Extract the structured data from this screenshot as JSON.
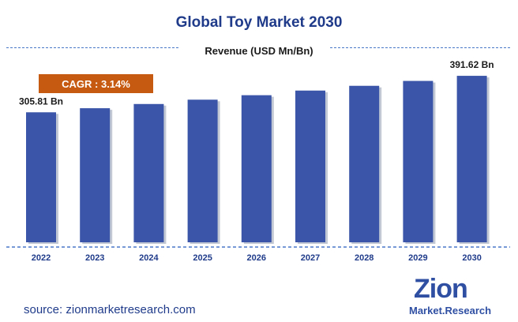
{
  "header": {
    "title": "Global Toy Market 2030",
    "subtitle": "Revenue (USD Mn/Bn)"
  },
  "cagr_label": "CAGR : 3.14%",
  "footer": {
    "source_label": "source: zionmarketresearch.com"
  },
  "logo": {
    "main": "Zion",
    "sub": "Market.Research"
  },
  "colors": {
    "bar": "#3b56a8",
    "bar_shadow": "#9aa3b8",
    "title": "#1f3b8a",
    "cagr_box": "#c65a11",
    "dash": "#4a78c8"
  },
  "chart_data": {
    "type": "bar",
    "title": "Global Toy Market 2030",
    "subtitle": "Revenue (USD Mn/Bn)",
    "categories": [
      "2022",
      "2023",
      "2024",
      "2025",
      "2026",
      "2027",
      "2028",
      "2029",
      "2030"
    ],
    "values": [
      305.81,
      315.4,
      325.3,
      335.5,
      346.0,
      356.9,
      368.1,
      379.6,
      391.62
    ],
    "data_labels": [
      {
        "index": 0,
        "text": "305.81 Bn"
      },
      {
        "index": 8,
        "text": "391.62 Bn"
      }
    ],
    "ylim": [
      0,
      440
    ],
    "grid": false,
    "legend": "none"
  }
}
